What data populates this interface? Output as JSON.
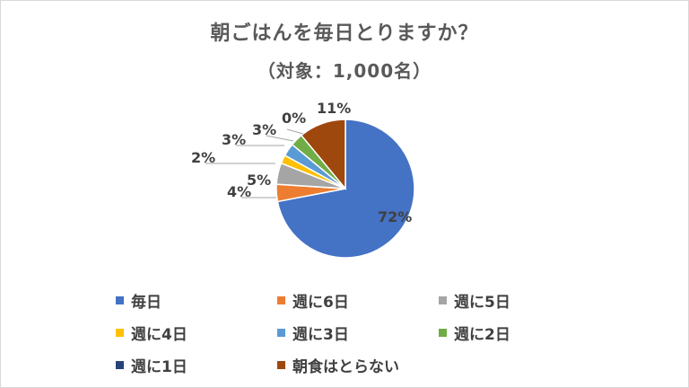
{
  "chart_data": {
    "type": "pie",
    "title": "朝ごはんを毎日とりますか？",
    "subtitle": "（対象：1,000名）",
    "legend_position": "bottom",
    "categories": [
      "毎日",
      "週に6日",
      "週に5日",
      "週に4日",
      "週に3日",
      "週に2日",
      "週に1日",
      "朝食はとらない"
    ],
    "values": [
      72,
      4,
      5,
      2,
      3,
      3,
      0,
      11
    ],
    "data_labels": [
      "72%",
      "4%",
      "5%",
      "2%",
      "3%",
      "3%",
      "0%",
      "11%"
    ],
    "colors": [
      "#4472C4",
      "#ED7D31",
      "#A5A5A5",
      "#FFC000",
      "#5B9BD5",
      "#70AD47",
      "#264478",
      "#9E480E"
    ]
  }
}
